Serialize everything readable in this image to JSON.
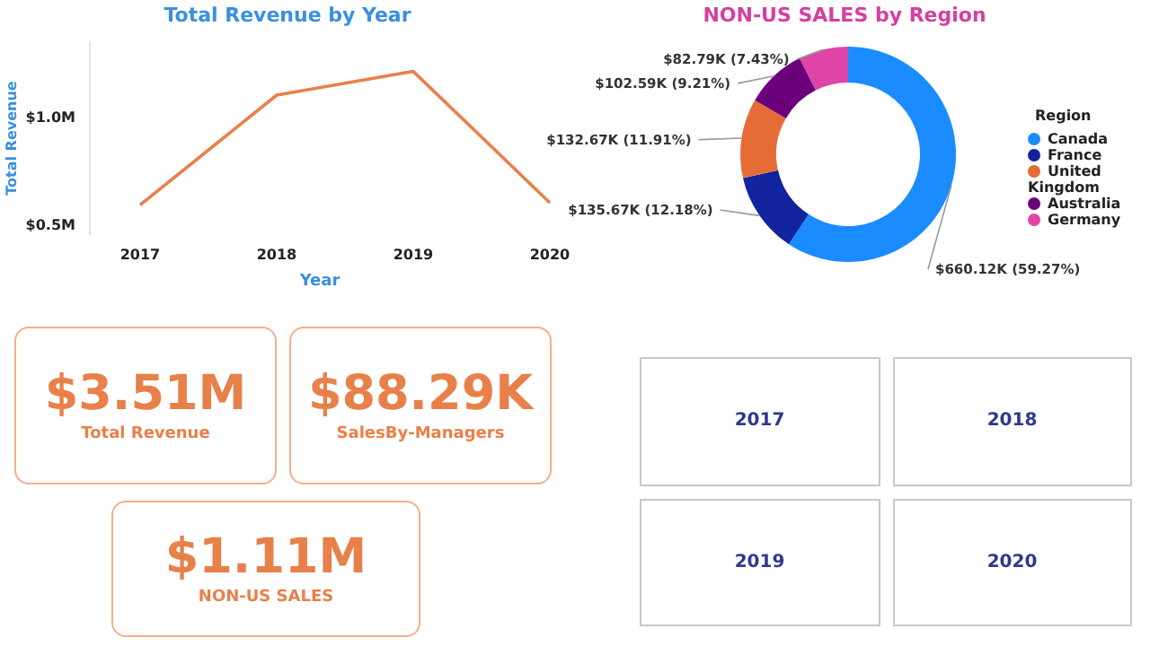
{
  "chart_data": [
    {
      "type": "line",
      "title": "Total Revenue by Year",
      "xlabel": "Year",
      "ylabel": "Total Revenue",
      "categories": [
        "2017",
        "2018",
        "2019",
        "2020"
      ],
      "series": [
        {
          "color": "#e8804a",
          "values": [
            0.59,
            1.1,
            1.21,
            0.6
          ]
        }
      ],
      "ylim": [
        0.45,
        1.35
      ],
      "yticks": [
        {
          "value": 0.5,
          "label": "$0.5M"
        },
        {
          "value": 1.0,
          "label": "$1.0M"
        }
      ],
      "grid": false,
      "legend": false,
      "marker": "none",
      "line_style": "solid"
    },
    {
      "type": "donut",
      "title": "NON-US SALES by Region",
      "legend_title": "Region",
      "legend": "right",
      "categories": [
        "Canada",
        "France",
        "United Kingdom",
        "Australia",
        "Germany"
      ],
      "values": [
        660120,
        135670,
        132670,
        102590,
        82790
      ],
      "colors": [
        "#1a8cff",
        "#12239e",
        "#e66c37",
        "#6b007b",
        "#e044a7"
      ],
      "value_labels": [
        "$660.12K (59.27%)",
        "$135.67K (12.18%)",
        "$132.67K (11.91%)",
        "$102.59K (9.21%)",
        "$82.79K (7.43%)"
      ]
    },
    {
      "type": "other",
      "annotations": [
        "$3.51M",
        "Total Revenue"
      ]
    },
    {
      "type": "other",
      "annotations": [
        "$88.29K",
        "SalesBy-Managers"
      ]
    },
    {
      "type": "other",
      "annotations": [
        "$1.11M",
        "NON-US SALES"
      ]
    },
    {
      "type": "other",
      "categories": [
        "2017",
        "2018",
        "2019",
        "2020"
      ]
    }
  ]
}
